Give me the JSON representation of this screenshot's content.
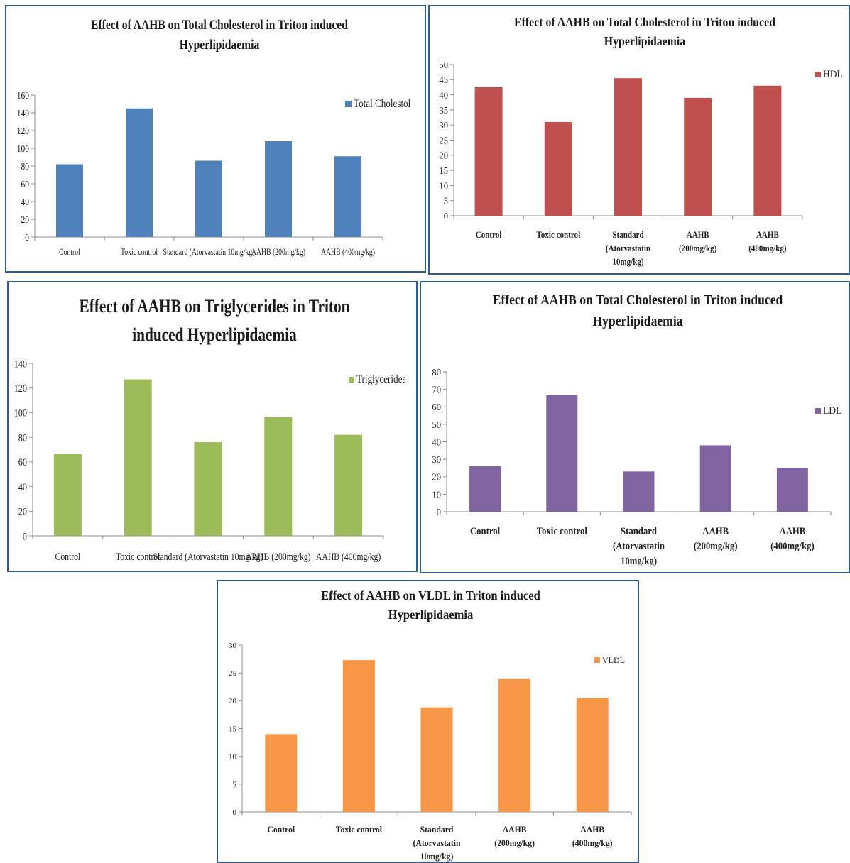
{
  "chart_data": [
    {
      "type": "bar",
      "title": [
        "Effect of AAHB on Total Cholesterol in Triton induced",
        "Hyperlipidaemia"
      ],
      "categories": [
        "Control",
        "Toxic control",
        "Standard (Atorvastatin 10mg/kg)",
        "AAHB (200mg/kg)",
        "AAHB (400mg/kg)"
      ],
      "series": [
        {
          "name": "Total Cholestol",
          "values": [
            82,
            145,
            86,
            108,
            91
          ]
        }
      ],
      "ylim": [
        0,
        160
      ],
      "yticks": [
        0,
        20,
        40,
        60,
        80,
        100,
        120,
        140,
        160
      ],
      "color": "#4f81bd",
      "legend": "right",
      "grid": false
    },
    {
      "type": "bar",
      "title": [
        "Effect of AAHB on Total Cholesterol in Triton induced",
        "Hyperlipidaemia"
      ],
      "categories": [
        "Control",
        "Toxic control",
        "Standard (Atorvastatin 10mg/kg)",
        "AAHB (200mg/kg)",
        "AAHB (400mg/kg)"
      ],
      "category_lines": [
        [
          "Control"
        ],
        [
          "Toxic control"
        ],
        [
          "Standard",
          "(Atorvastatin",
          "10mg/kg)"
        ],
        [
          "AAHB",
          "(200mg/kg)"
        ],
        [
          "AAHB",
          "(400mg/kg)"
        ]
      ],
      "series": [
        {
          "name": "HDL",
          "values": [
            42.5,
            31,
            45.5,
            39,
            43
          ]
        }
      ],
      "ylim": [
        0,
        50
      ],
      "yticks": [
        0,
        5,
        10,
        15,
        20,
        25,
        30,
        35,
        40,
        45,
        50
      ],
      "color": "#c0504d",
      "legend": "top-right",
      "grid": false
    },
    {
      "type": "bar",
      "title": [
        "Effect of AAHB on Triglycerides in Triton",
        "induced Hyperlipidaemia"
      ],
      "categories": [
        "Control",
        "Toxic control",
        "Standard (Atorvastatin 10mg/kg)",
        "AAHB (200mg/kg)",
        "AAHB (400mg/kg)"
      ],
      "series": [
        {
          "name": "Triglycerides",
          "values": [
            66.5,
            127,
            76,
            96.5,
            82
          ]
        }
      ],
      "ylim": [
        0,
        140
      ],
      "yticks": [
        0,
        20,
        40,
        60,
        80,
        100,
        120,
        140
      ],
      "color": "#9bbb59",
      "legend": "top-right",
      "grid": false
    },
    {
      "type": "bar",
      "title": [
        "Effect of AAHB on Total Cholesterol in Triton induced",
        "Hyperlipidaemia"
      ],
      "categories": [
        "Control",
        "Toxic control",
        "Standard (Atorvastatin 10mg/kg)",
        "AAHB (200mg/kg)",
        "AAHB (400mg/kg)"
      ],
      "category_lines": [
        [
          "Control"
        ],
        [
          "Toxic control"
        ],
        [
          "Standard",
          "(Atorvastatin",
          "10mg/kg)"
        ],
        [
          "AAHB",
          "(200mg/kg)"
        ],
        [
          "AAHB",
          "(400mg/kg)"
        ]
      ],
      "series": [
        {
          "name": "LDL",
          "values": [
            26,
            67,
            23,
            38,
            25
          ]
        }
      ],
      "ylim": [
        0,
        80
      ],
      "yticks": [
        0,
        10,
        20,
        30,
        40,
        50,
        60,
        70,
        80
      ],
      "color": "#8064a2",
      "legend": "right",
      "grid": false
    },
    {
      "type": "bar",
      "title": [
        "Effect of AAHB on VLDL in Triton induced",
        "Hyperlipidaemia"
      ],
      "categories": [
        "Control",
        "Toxic control",
        "Standard (Atorvastatin 10mg/kg)",
        "AAHB (200mg/kg)",
        "AAHB (400mg/kg)"
      ],
      "category_lines": [
        [
          "Control"
        ],
        [
          "Toxic control"
        ],
        [
          "Standard",
          "(Atorvastatin",
          "10mg/kg)"
        ],
        [
          "AAHB",
          "(200mg/kg)"
        ],
        [
          "AAHB",
          "(400mg/kg)"
        ]
      ],
      "series": [
        {
          "name": "VLDL",
          "values": [
            14,
            27.3,
            18.8,
            23.9,
            20.5
          ]
        }
      ],
      "ylim": [
        0,
        30
      ],
      "yticks": [
        0,
        5,
        10,
        15,
        20,
        25,
        30
      ],
      "color": "#f79646",
      "legend": "top-right",
      "grid": false
    }
  ]
}
